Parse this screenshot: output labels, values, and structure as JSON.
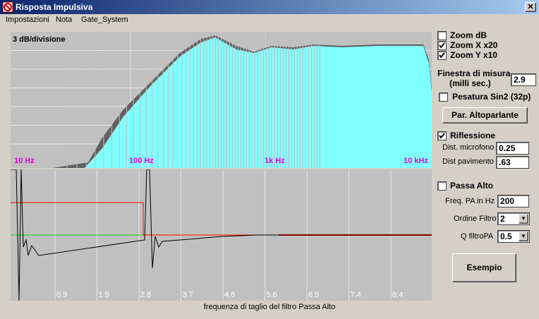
{
  "window": {
    "title": "Risposta Impulsiva"
  },
  "menu": [
    "Impostazioni",
    "Nota",
    "Gate_System"
  ],
  "frequency_plot": {
    "scale_label": "3 dB/divisione",
    "axis_labels": [
      "10 Hz",
      "100 Hz",
      "1k Hz",
      "10 kHz"
    ]
  },
  "impulse_plot": {
    "axis_labels": [
      "0.9",
      "1.9",
      "2.8",
      "3.7",
      "4.6",
      "5.6",
      "6.5",
      "7.4",
      "8.4"
    ],
    "caption": "frequenza di taglio del filtro Passa Alto"
  },
  "controls": {
    "zoom_db": {
      "label": "Zoom dB",
      "checked": false
    },
    "zoom_x": {
      "label": "Zoom X x20",
      "checked": true
    },
    "zoom_y": {
      "label": "Zoom Y x10",
      "checked": true
    },
    "window_label": "Finestra di misura",
    "window_unit": "(milli sec.)",
    "window_value": "2.9",
    "sin2": {
      "label": "Pesatura Sin2 (32p)",
      "checked": false
    },
    "speaker_button": "Par. Altoparlante",
    "reflection": {
      "label": "Riflessione",
      "checked": true
    },
    "mic_distance_label": "Dist. microfono",
    "mic_distance": "0.25",
    "floor_distance_label": "Dist pavimento",
    "floor_distance": ".63",
    "highpass": {
      "label": "Passa Alto",
      "checked": false
    },
    "hp_freq_label": "Freq. PA in Hz",
    "hp_freq": "200",
    "filter_order_label": "Ordine Filtro",
    "filter_order": "2",
    "q_label": "Q filtroPA",
    "q": "0.5",
    "example_button": "Esempio"
  }
}
